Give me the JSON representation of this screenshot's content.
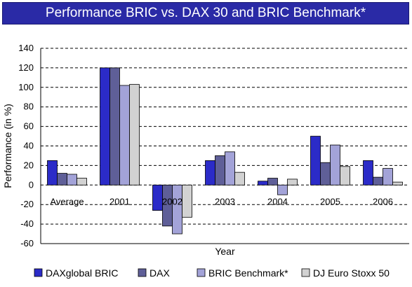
{
  "chart_data": {
    "type": "bar",
    "title": "Performance BRIC vs. DAX 30 and BRIC Benchmark*",
    "xlabel": "Year",
    "ylabel": "Performance (in %)",
    "ylim": [
      -60,
      140
    ],
    "yticks": [
      140,
      120,
      100,
      80,
      60,
      40,
      20,
      0,
      -20,
      -40,
      -60
    ],
    "grid": "horizontal dashed",
    "legend_position": "bottom",
    "categories": [
      "Average",
      "2001",
      "2002",
      "2003",
      "2004",
      "2005",
      "2006"
    ],
    "series": [
      {
        "name": "DAXglobal BRIC",
        "color": "#2b2bc8",
        "values": [
          25,
          120,
          -26,
          25,
          4,
          50,
          25
        ]
      },
      {
        "name": "DAX",
        "color": "#5f5f98",
        "values": [
          12,
          120,
          -42,
          30,
          7,
          23,
          8
        ]
      },
      {
        "name": "BRIC Benchmark*",
        "color": "#a3a3d8",
        "values": [
          11,
          102,
          -50,
          34,
          -10,
          41,
          17
        ]
      },
      {
        "name": "DJ Euro Stoxx 50",
        "color": "#d2d2d2",
        "values": [
          7,
          103,
          -33,
          13,
          6,
          19,
          3
        ]
      }
    ]
  }
}
